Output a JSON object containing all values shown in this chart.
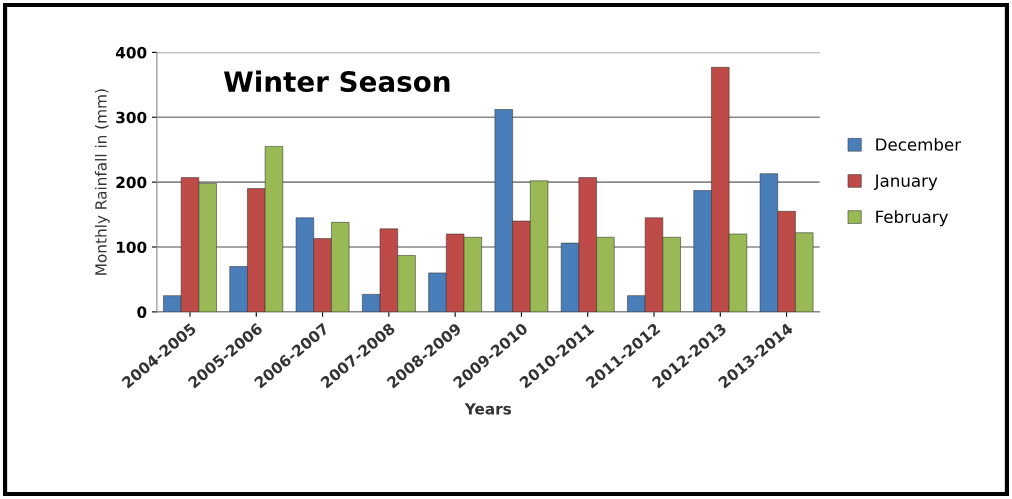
{
  "chart_data": {
    "type": "bar",
    "title": "Winter Season",
    "xlabel": "Years",
    "ylabel": "Monthly Rainfall in (mm)",
    "categories": [
      "2004-2005",
      "2005-2006",
      "2006-2007",
      "2007-2008",
      "2008-2009",
      "2009-2010",
      "2010-2011",
      "2011-2012",
      "2012-2013",
      "2013-2014"
    ],
    "series": [
      {
        "name": "December",
        "color": "#4a7ebb",
        "values": [
          25,
          70,
          145,
          27,
          60,
          312,
          106,
          25,
          187,
          213
        ]
      },
      {
        "name": "January",
        "color": "#be4b48",
        "values": [
          207,
          190,
          113,
          128,
          120,
          140,
          207,
          145,
          377,
          155
        ]
      },
      {
        "name": "February",
        "color": "#98b954",
        "values": [
          198,
          255,
          138,
          87,
          115,
          202,
          115,
          115,
          120,
          122
        ]
      }
    ],
    "ylim": [
      0,
      400
    ],
    "yticks": [
      0,
      100,
      200,
      300,
      400
    ],
    "grid": "y",
    "legend": "right"
  }
}
